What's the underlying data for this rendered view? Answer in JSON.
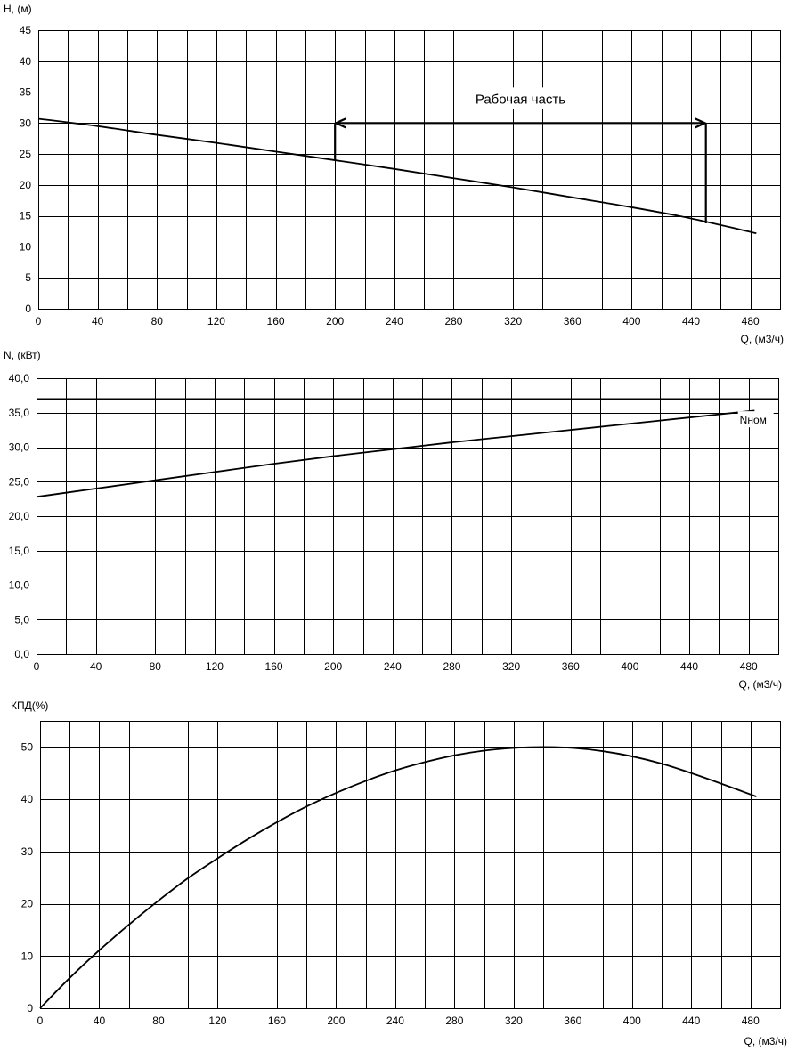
{
  "chart_data": [
    {
      "id": "head",
      "type": "line",
      "ylabel": "H, (м)",
      "xlabel": "Q, (м3/ч)",
      "xlim": [
        0,
        500
      ],
      "ylim": [
        0,
        45
      ],
      "x_ticks": [
        0,
        40,
        80,
        120,
        160,
        200,
        240,
        280,
        320,
        360,
        400,
        440,
        480
      ],
      "x_tick_labels": [
        "0",
        "40",
        "80",
        "120",
        "160",
        "200",
        "240",
        "280",
        "320",
        "360",
        "400",
        "440",
        "480"
      ],
      "y_ticks": [
        0,
        5,
        10,
        15,
        20,
        25,
        30,
        35,
        40,
        45
      ],
      "y_tick_labels": [
        "0",
        "5",
        "10",
        "15",
        "20",
        "25",
        "30",
        "35",
        "40",
        "45"
      ],
      "grid": true,
      "series": [
        {
          "x": [
            0,
            40,
            80,
            120,
            160,
            200,
            240,
            280,
            320,
            360,
            400,
            440,
            484
          ],
          "y": [
            30.7,
            29.5,
            28.1,
            26.8,
            25.4,
            24.0,
            22.6,
            21.1,
            19.6,
            18.0,
            16.4,
            14.6,
            12.2
          ]
        }
      ],
      "annotation": {
        "text": "Рабочая часть",
        "range": [
          200,
          450
        ],
        "y": 30,
        "y_start": 24,
        "y_end": 13.8
      }
    },
    {
      "id": "power",
      "type": "line",
      "ylabel": "N, (кВт)",
      "xlabel": "Q, (м3/ч)",
      "xlim": [
        0,
        500
      ],
      "ylim": [
        0,
        40
      ],
      "x_ticks": [
        0,
        40,
        80,
        120,
        160,
        200,
        240,
        280,
        320,
        360,
        400,
        440,
        480
      ],
      "x_tick_labels": [
        "0",
        "40",
        "80",
        "120",
        "160",
        "200",
        "240",
        "280",
        "320",
        "360",
        "400",
        "440",
        "480"
      ],
      "y_ticks": [
        0,
        5,
        10,
        15,
        20,
        25,
        30,
        35,
        40
      ],
      "y_tick_labels": [
        "0,0",
        "5,0",
        "10,0",
        "15,0",
        "20,0",
        "25,0",
        "30,0",
        "35,0",
        "40,0"
      ],
      "grid": true,
      "series": [
        {
          "x": [
            0,
            40,
            80,
            120,
            160,
            200,
            240,
            280,
            320,
            360,
            400,
            440,
            484
          ],
          "y": [
            22.8,
            24.0,
            25.2,
            26.4,
            27.6,
            28.7,
            29.7,
            30.7,
            31.6,
            32.5,
            33.4,
            34.3,
            35.3
          ]
        }
      ],
      "nominal": {
        "label": "Nном",
        "y": 37.0
      }
    },
    {
      "id": "efficiency",
      "type": "line",
      "ylabel": "КПД(%)",
      "xlabel": "Q, (м3/ч)",
      "xlim": [
        0,
        500
      ],
      "ylim": [
        0,
        55
      ],
      "x_ticks": [
        0,
        40,
        80,
        120,
        160,
        200,
        240,
        280,
        320,
        360,
        400,
        440,
        480
      ],
      "x_tick_labels": [
        "0",
        "40",
        "80",
        "120",
        "160",
        "200",
        "240",
        "280",
        "320",
        "360",
        "400",
        "440",
        "480"
      ],
      "y_ticks": [
        0,
        10,
        20,
        30,
        40,
        50
      ],
      "y_tick_labels": [
        "0",
        "10",
        "20",
        "30",
        "40",
        "50"
      ],
      "grid": true,
      "series": [
        {
          "x": [
            0,
            20,
            40,
            60,
            80,
            100,
            120,
            140,
            160,
            180,
            200,
            220,
            240,
            260,
            280,
            300,
            320,
            340,
            360,
            380,
            400,
            420,
            440,
            460,
            484
          ],
          "y": [
            0,
            5.8,
            11.1,
            16.0,
            20.6,
            24.9,
            28.7,
            32.3,
            35.6,
            38.6,
            41.2,
            43.5,
            45.5,
            47.1,
            48.4,
            49.3,
            49.8,
            50.0,
            49.8,
            49.2,
            48.2,
            46.8,
            45.0,
            43.0,
            40.5
          ]
        }
      ]
    }
  ]
}
